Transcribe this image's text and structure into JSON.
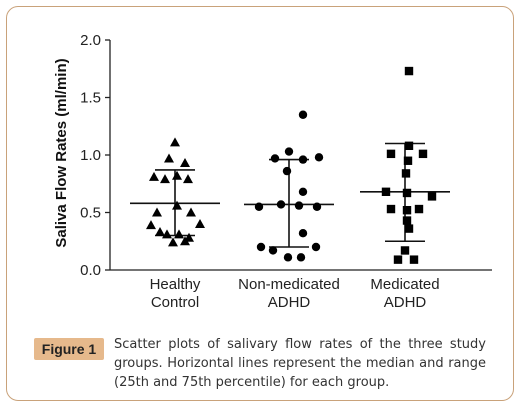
{
  "chart_data": {
    "type": "scatter",
    "ylabel": "Saliva Flow Rates (ml/min)",
    "ylim": [
      0,
      2.0
    ],
    "yticks": [
      "0.0",
      "0.5",
      "1.0",
      "1.5",
      "2.0"
    ],
    "grid": false,
    "categories": [
      {
        "line1": "Healthy",
        "line2": "Control"
      },
      {
        "line1": "Non-medicated",
        "line2": "ADHD"
      },
      {
        "line1": "Medicated",
        "line2": "ADHD"
      }
    ],
    "groups": [
      {
        "marker": "triangle",
        "median": 0.58,
        "q1": 0.3,
        "q3": 0.87,
        "points": [
          {
            "o": 0,
            "y": 1.11
          },
          {
            "o": -6,
            "y": 0.97
          },
          {
            "o": 10,
            "y": 0.93
          },
          {
            "o": -21,
            "y": 0.81
          },
          {
            "o": -10,
            "y": 0.79
          },
          {
            "o": 2,
            "y": 0.82
          },
          {
            "o": 13,
            "y": 0.79
          },
          {
            "o": -18,
            "y": 0.5
          },
          {
            "o": 2,
            "y": 0.56
          },
          {
            "o": 16,
            "y": 0.5
          },
          {
            "o": -24,
            "y": 0.39
          },
          {
            "o": 25,
            "y": 0.4
          },
          {
            "o": -15,
            "y": 0.33
          },
          {
            "o": -8,
            "y": 0.31
          },
          {
            "o": 4,
            "y": 0.31
          },
          {
            "o": 14,
            "y": 0.28
          },
          {
            "o": -2,
            "y": 0.24
          },
          {
            "o": 10,
            "y": 0.25
          }
        ]
      },
      {
        "marker": "circle",
        "median": 0.57,
        "q1": 0.2,
        "q3": 0.96,
        "points": [
          {
            "o": 14,
            "y": 1.35
          },
          {
            "o": 0,
            "y": 1.03
          },
          {
            "o": -14,
            "y": 0.97
          },
          {
            "o": 14,
            "y": 0.96
          },
          {
            "o": 30,
            "y": 0.98
          },
          {
            "o": -2,
            "y": 0.86
          },
          {
            "o": 14,
            "y": 0.68
          },
          {
            "o": -30,
            "y": 0.55
          },
          {
            "o": -8,
            "y": 0.57
          },
          {
            "o": 10,
            "y": 0.56
          },
          {
            "o": 28,
            "y": 0.55
          },
          {
            "o": 14,
            "y": 0.32
          },
          {
            "o": -28,
            "y": 0.2
          },
          {
            "o": -16,
            "y": 0.17
          },
          {
            "o": 27,
            "y": 0.2
          },
          {
            "o": -1,
            "y": 0.11
          },
          {
            "o": 12,
            "y": 0.11
          }
        ]
      },
      {
        "marker": "square",
        "median": 0.68,
        "q1": 0.25,
        "q3": 1.1,
        "points": [
          {
            "o": 4,
            "y": 1.73
          },
          {
            "o": 4,
            "y": 1.08
          },
          {
            "o": -14,
            "y": 1.01
          },
          {
            "o": 18,
            "y": 1.01
          },
          {
            "o": 3,
            "y": 0.95
          },
          {
            "o": 1,
            "y": 0.84
          },
          {
            "o": -19,
            "y": 0.68
          },
          {
            "o": 2,
            "y": 0.67
          },
          {
            "o": 27,
            "y": 0.64
          },
          {
            "o": -14,
            "y": 0.53
          },
          {
            "o": 2,
            "y": 0.52
          },
          {
            "o": 14,
            "y": 0.53
          },
          {
            "o": 2,
            "y": 0.43
          },
          {
            "o": 4,
            "y": 0.36
          },
          {
            "o": 0,
            "y": 0.17
          },
          {
            "o": -7,
            "y": 0.09
          },
          {
            "o": 9,
            "y": 0.09
          }
        ]
      }
    ]
  },
  "figure": {
    "badge": "Figure 1",
    "caption": "Scatter plots of salivary flow rates of the three study groups. Horizontal lines represent the median and range (25th and 75th percentile) for each group."
  }
}
